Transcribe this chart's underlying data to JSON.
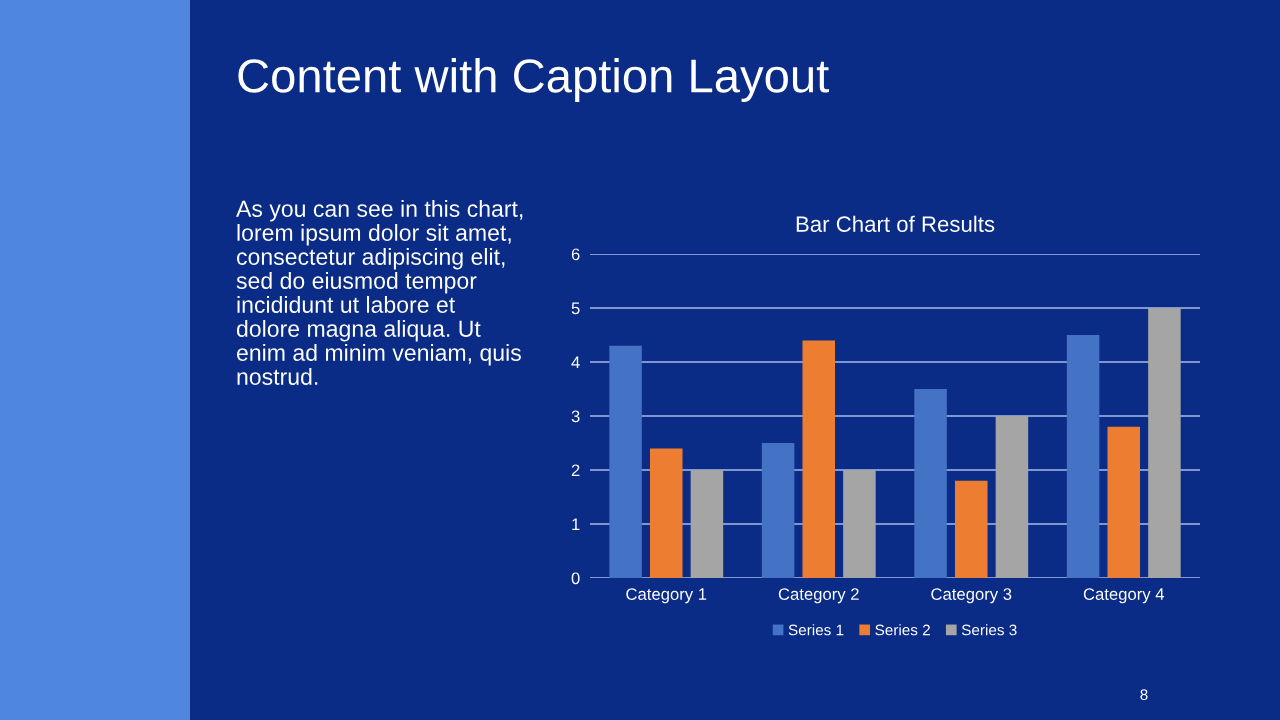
{
  "chart_data": {
    "type": "bar",
    "title": "Bar Chart of Results",
    "categories": [
      "Category 1",
      "Category 2",
      "Category 3",
      "Category 4"
    ],
    "series": [
      {
        "name": "Series 1",
        "color": "#4472c4",
        "values": [
          4.3,
          2.5,
          3.5,
          4.5
        ]
      },
      {
        "name": "Series 2",
        "color": "#ed7d31",
        "values": [
          2.4,
          4.4,
          1.8,
          2.8
        ]
      },
      {
        "name": "Series 3",
        "color": "#a5a5a5",
        "values": [
          2,
          2,
          3,
          5
        ]
      }
    ],
    "ylim": [
      0,
      6
    ],
    "yticks": [
      0,
      1,
      2,
      3,
      4,
      5,
      6
    ],
    "grid": "y",
    "legend": "bottom",
    "annotations": [
      "Content with Caption Layout",
      "As you can see in this chart,\nlorem ipsum dolor sit amet,\nconsectetur adipiscing elit,\nsed do eiusmod tempor\nincididunt ut labore et\ndolore magna aliqua. Ut\nenim ad minim veniam, quis\nnostrud.",
      "8"
    ]
  }
}
